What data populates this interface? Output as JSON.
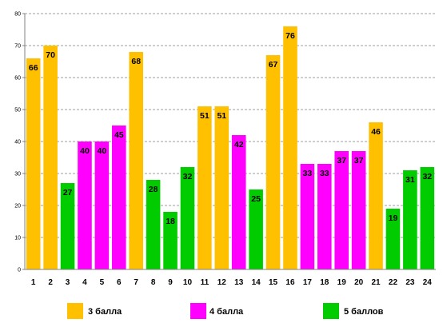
{
  "chart_data": {
    "type": "bar",
    "categories": [
      "1",
      "2",
      "3",
      "4",
      "5",
      "6",
      "7",
      "8",
      "9",
      "10",
      "11",
      "12",
      "13",
      "14",
      "15",
      "16",
      "17",
      "18",
      "19",
      "20",
      "21",
      "22",
      "23",
      "24"
    ],
    "values": [
      66,
      70,
      27,
      40,
      40,
      45,
      68,
      28,
      18,
      32,
      51,
      51,
      42,
      25,
      67,
      76,
      33,
      33,
      37,
      37,
      46,
      19,
      31,
      32
    ],
    "groups": [
      "3 балла",
      "3 балла",
      "5 баллов",
      "4 балла",
      "4 балла",
      "4 балла",
      "3 балла",
      "5 баллов",
      "5 баллов",
      "5 баллов",
      "3 балла",
      "3 балла",
      "4 балла",
      "5 баллов",
      "3 балла",
      "3 балла",
      "4 балла",
      "4 балла",
      "4 балла",
      "4 балла",
      "3 балла",
      "5 баллов",
      "5 баллов",
      "5 баллов"
    ],
    "ylim": [
      0,
      80
    ],
    "yticks": [
      0,
      10,
      20,
      30,
      40,
      50,
      60,
      70,
      80
    ],
    "grid": true,
    "legend_position": "bottom",
    "legend": [
      {
        "name": "3 балла",
        "color": "#FFC000"
      },
      {
        "name": "4 балла",
        "color": "#FF00FF"
      },
      {
        "name": "5 баллов",
        "color": "#00CC00"
      }
    ]
  }
}
